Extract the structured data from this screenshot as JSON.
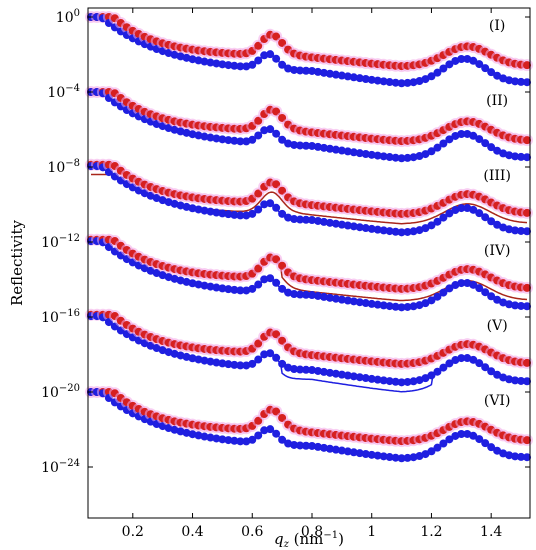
{
  "chart_data": {
    "type": "scatter",
    "xlabel": "q_z (nm^-1)",
    "xlabel_parts": {
      "var": "q",
      "sub": "z",
      "unit_open": " (nm",
      "unit_exp": "−1",
      "unit_close": ")"
    },
    "ylabel": "Reflectivity",
    "yscale": "log",
    "xlim": [
      0.05,
      1.53
    ],
    "ylim_exponent": [
      -27.2,
      0
    ],
    "x_ticks": [
      "0.2",
      "0.4",
      "0.6",
      "0.8",
      "1",
      "1.2",
      "1.4"
    ],
    "x_tick_values": [
      0.2,
      0.4,
      0.6,
      0.8,
      1.0,
      1.2,
      1.4
    ],
    "y_ticks": [
      {
        "base": "10",
        "exp": "0"
      },
      {
        "base": "10",
        "exp": "−4"
      },
      {
        "base": "10",
        "exp": "−8"
      },
      {
        "base": "10",
        "exp": "−12"
      },
      {
        "base": "10",
        "exp": "−16"
      },
      {
        "base": "10",
        "exp": "−20"
      },
      {
        "base": "10",
        "exp": "−24"
      }
    ],
    "y_tick_exponents": [
      0,
      -4,
      -8,
      -12,
      -16,
      -20,
      -24
    ],
    "colors": {
      "blue_data": "#1f1fe0",
      "red_data": "#d62020",
      "red_fit": "#a8261a",
      "blue_fit": "#1f1fe0",
      "highlight": "#f2a8e8"
    },
    "panels": [
      {
        "label": "(I)",
        "offset": 0,
        "plateau_x": 0.1,
        "variant": 0
      },
      {
        "label": "(II)",
        "offset": -4,
        "plateau_x": 0.1,
        "variant": 1
      },
      {
        "label": "(III)",
        "offset": -8,
        "plateau_x": 0.1,
        "variant": 2
      },
      {
        "label": "(IV)",
        "offset": -12,
        "plateau_x": 0.13,
        "variant": 3
      },
      {
        "label": "(V)",
        "offset": -16,
        "plateau_x": 0.12,
        "variant": 4
      },
      {
        "label": "(VI)",
        "offset": -20,
        "plateau_x": 0.1,
        "variant": 5
      }
    ],
    "x_points": [
      0.06,
      0.08,
      0.1,
      0.12,
      0.14,
      0.16,
      0.18,
      0.2,
      0.22,
      0.24,
      0.26,
      0.28,
      0.3,
      0.32,
      0.34,
      0.36,
      0.38,
      0.4,
      0.42,
      0.44,
      0.46,
      0.48,
      0.5,
      0.52,
      0.54,
      0.56,
      0.58,
      0.6,
      0.62,
      0.64,
      0.66,
      0.68,
      0.7,
      0.72,
      0.74,
      0.76,
      0.78,
      0.8,
      0.82,
      0.84,
      0.86,
      0.88,
      0.9,
      0.92,
      0.94,
      0.96,
      0.98,
      1.0,
      1.02,
      1.04,
      1.06,
      1.08,
      1.1,
      1.12,
      1.14,
      1.16,
      1.18,
      1.2,
      1.22,
      1.24,
      1.26,
      1.28,
      1.3,
      1.32,
      1.34,
      1.36,
      1.38,
      1.4,
      1.42,
      1.44,
      1.46,
      1.48,
      1.5,
      1.52
    ]
  }
}
